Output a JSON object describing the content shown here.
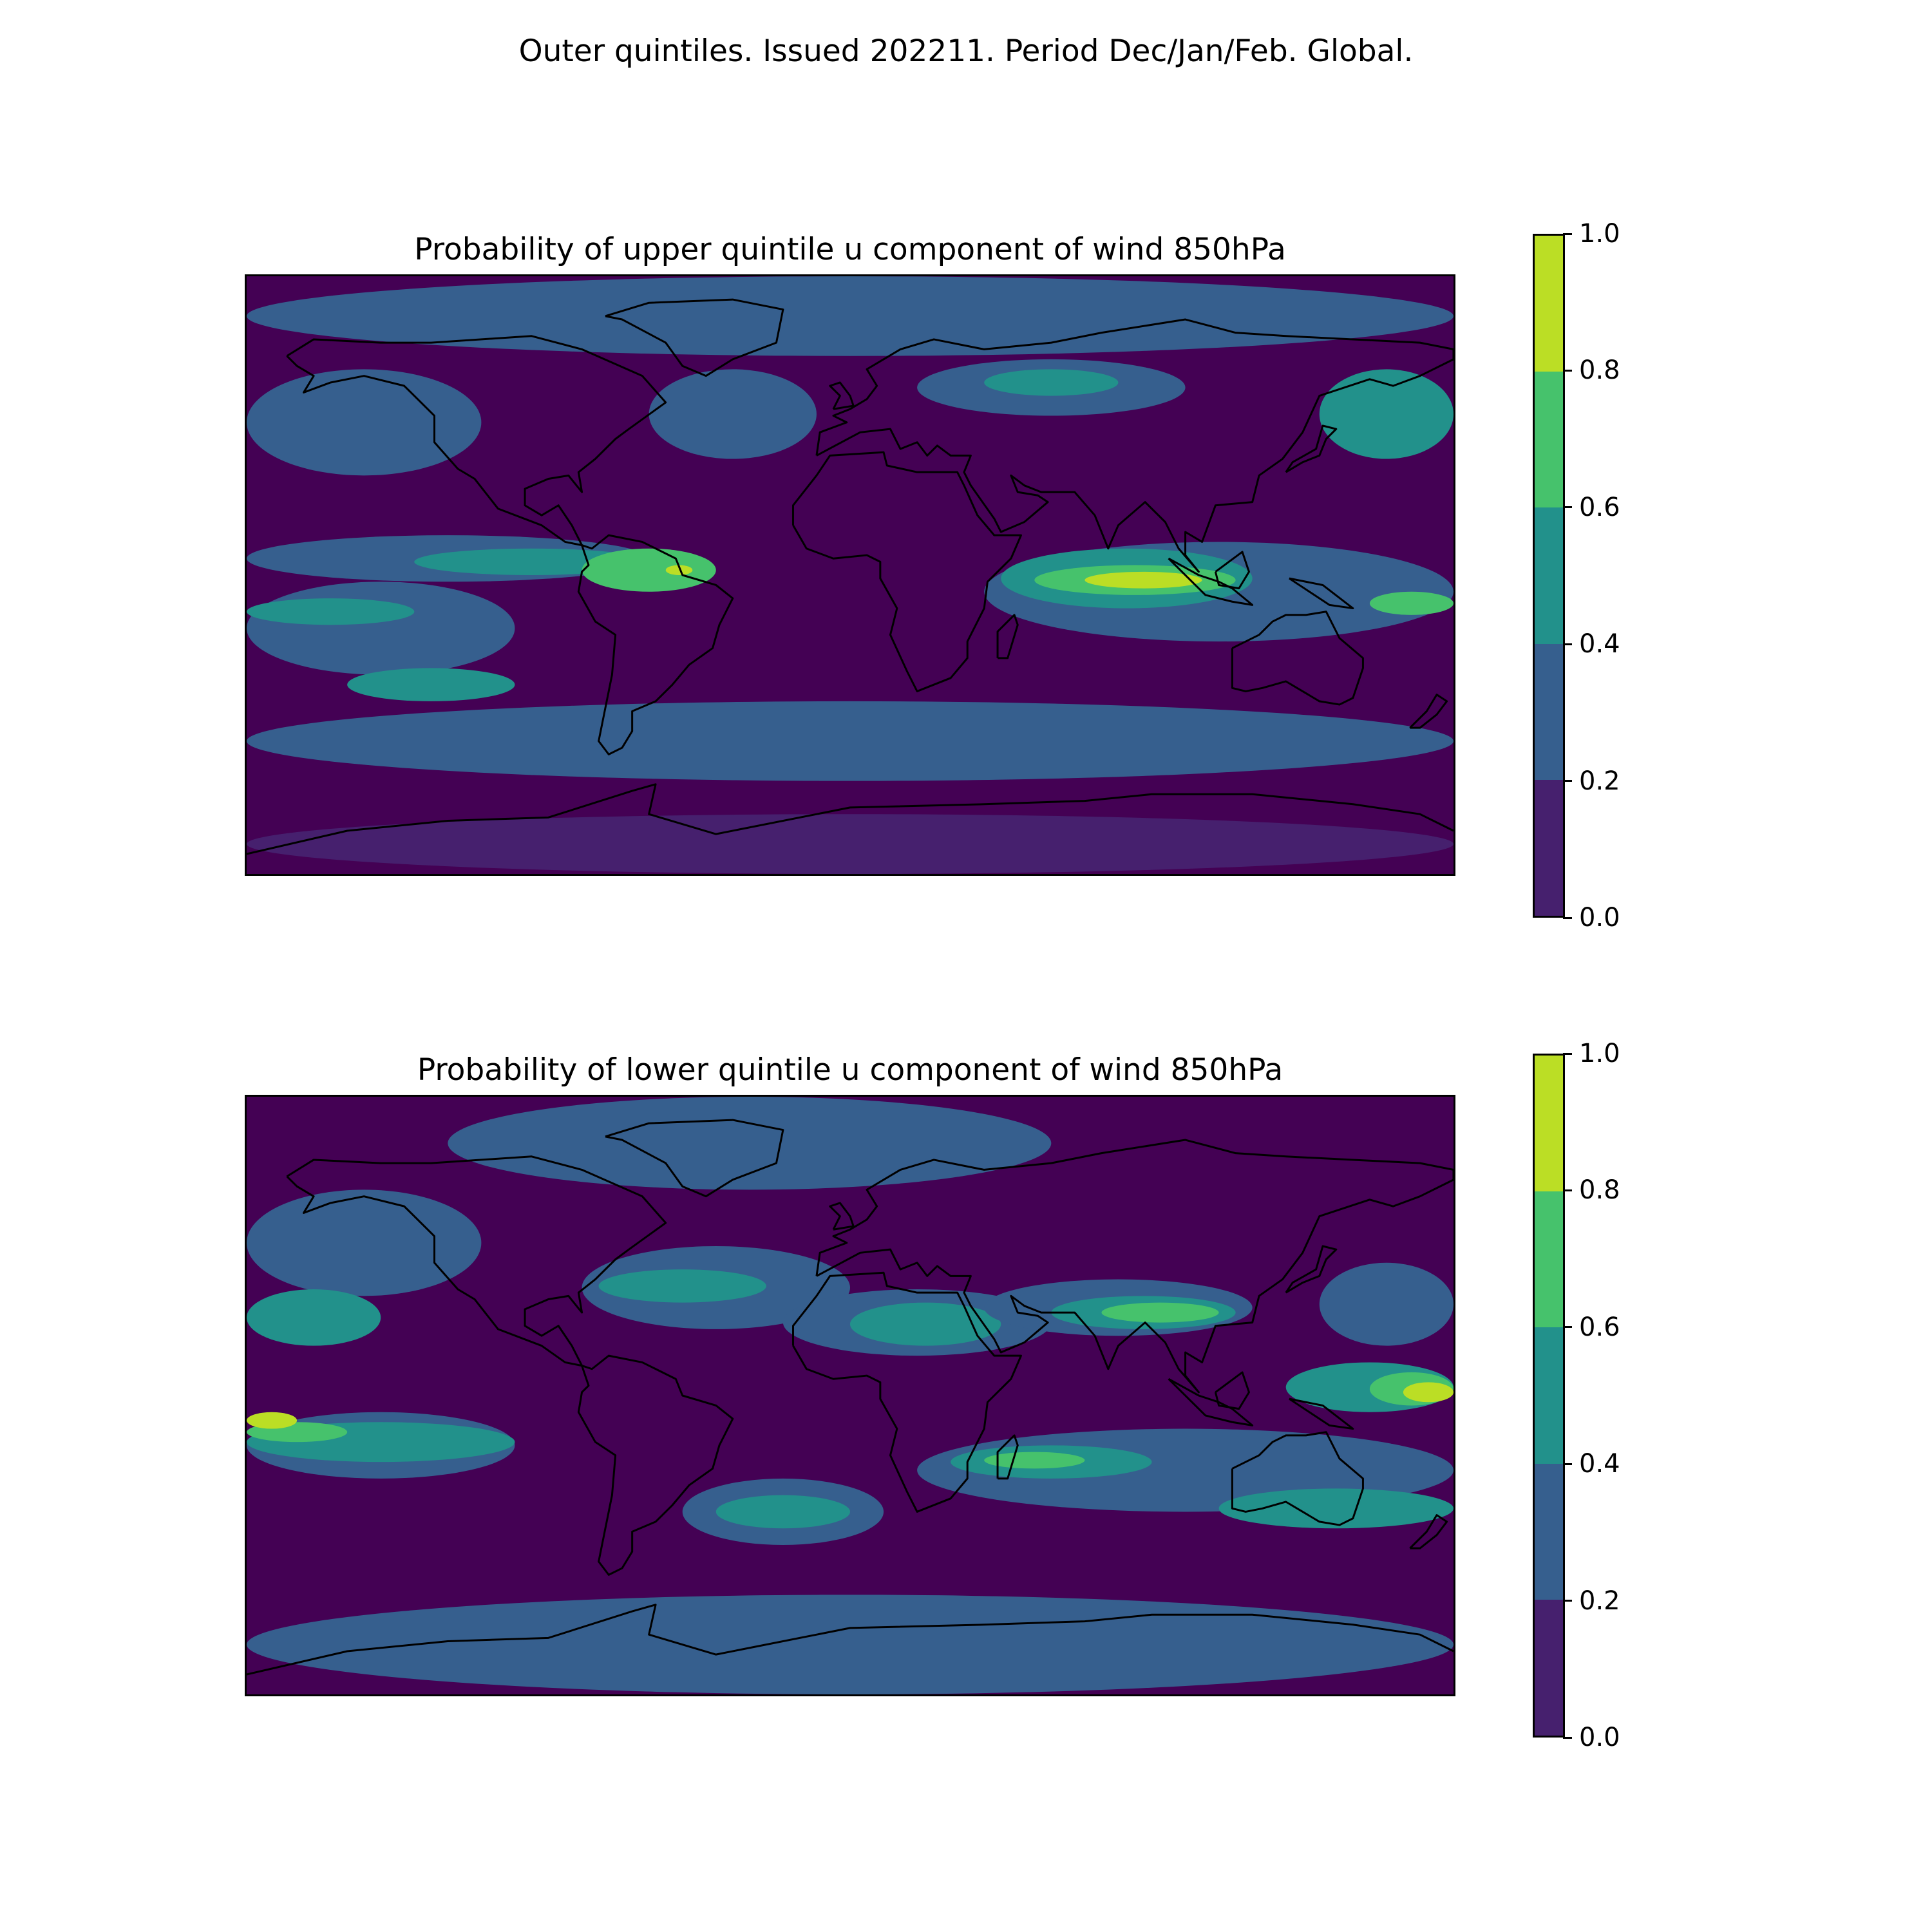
{
  "figure": {
    "suptitle": "Outer quintiles. Issued 202211. Period Dec/Jan/Feb. Global."
  },
  "colorbar": {
    "ticks": [
      "0.0",
      "0.2",
      "0.4",
      "0.6",
      "0.8",
      "1.0"
    ],
    "levels": [
      0.0,
      0.2,
      0.4,
      0.6,
      0.8,
      1.0
    ],
    "colors": [
      "#46206e",
      "#365f8e",
      "#22918b",
      "#46c26c",
      "#bbde25"
    ]
  },
  "chart_data": [
    {
      "type": "heatmap",
      "title": "Probability of upper quintile u component of wind 850hPa",
      "projection": "plate-carree",
      "extent": {
        "lon": [
          -180,
          180
        ],
        "lat": [
          -90,
          90
        ]
      },
      "levels": [
        0.0,
        0.2,
        0.4,
        0.6,
        0.8,
        1.0
      ],
      "regions": [
        {
          "name": "arctic belt",
          "lon": [
            -180,
            180
          ],
          "lat": [
            66,
            90
          ],
          "value": 0.3
        },
        {
          "name": "north pacific",
          "lon": [
            -180,
            -110
          ],
          "lat": [
            30,
            62
          ],
          "value": 0.3
        },
        {
          "name": "north atlantic",
          "lon": [
            -60,
            -10
          ],
          "lat": [
            35,
            62
          ],
          "value": 0.3
        },
        {
          "name": "europe-siberia",
          "lon": [
            20,
            100
          ],
          "lat": [
            48,
            65
          ],
          "value": 0.3
        },
        {
          "name": "siberia jet",
          "lon": [
            40,
            80
          ],
          "lat": [
            54,
            62
          ],
          "value": 0.5
        },
        {
          "name": "east asia-pacific",
          "lon": [
            140,
            180
          ],
          "lat": [
            35,
            62
          ],
          "value": 0.5
        },
        {
          "name": "tropical east pacific",
          "lon": [
            -180,
            -60
          ],
          "lat": [
            -2,
            12
          ],
          "value": 0.3
        },
        {
          "name": "tropical east pacific core",
          "lon": [
            -130,
            -60
          ],
          "lat": [
            0,
            8
          ],
          "value": 0.5
        },
        {
          "name": "south america north",
          "lon": [
            -80,
            -40
          ],
          "lat": [
            -5,
            8
          ],
          "value": 0.7
        },
        {
          "name": "amazon max",
          "lon": [
            -55,
            -47
          ],
          "lat": [
            0,
            3
          ],
          "value": 0.9
        },
        {
          "name": "indian ocean",
          "lon": [
            40,
            180
          ],
          "lat": [
            -20,
            10
          ],
          "value": 0.3
        },
        {
          "name": "indian ocean core",
          "lon": [
            45,
            120
          ],
          "lat": [
            -10,
            8
          ],
          "value": 0.5
        },
        {
          "name": "indian ocean strong",
          "lon": [
            55,
            115
          ],
          "lat": [
            -6,
            3
          ],
          "value": 0.7
        },
        {
          "name": "indian ocean max",
          "lon": [
            70,
            105
          ],
          "lat": [
            -4,
            1
          ],
          "value": 0.9
        },
        {
          "name": "coral sea",
          "lon": [
            155,
            180
          ],
          "lat": [
            -12,
            -5
          ],
          "value": 0.7
        },
        {
          "name": "south pacific belt",
          "lon": [
            -180,
            -100
          ],
          "lat": [
            -30,
            -2
          ],
          "value": 0.3
        },
        {
          "name": "south pacific core",
          "lon": [
            -180,
            -130
          ],
          "lat": [
            -15,
            -7
          ],
          "value": 0.5
        },
        {
          "name": "southern ocean belt",
          "lon": [
            -180,
            180
          ],
          "lat": [
            -62,
            -38
          ],
          "value": 0.3
        },
        {
          "name": "south atlantic band",
          "lon": [
            -150,
            -100
          ],
          "lat": [
            -38,
            -28
          ],
          "value": 0.5
        },
        {
          "name": "antarctic",
          "lon": [
            -180,
            180
          ],
          "lat": [
            -90,
            -72
          ],
          "value": 0.1
        }
      ]
    },
    {
      "type": "heatmap",
      "title": "Probability of lower quintile u component of wind 850hPa",
      "projection": "plate-carree",
      "extent": {
        "lon": [
          -180,
          180
        ],
        "lat": [
          -90,
          90
        ]
      },
      "levels": [
        0.0,
        0.2,
        0.4,
        0.6,
        0.8,
        1.0
      ],
      "regions": [
        {
          "name": "arctic belt",
          "lon": [
            -120,
            60
          ],
          "lat": [
            62,
            90
          ],
          "value": 0.3
        },
        {
          "name": "north pacific",
          "lon": [
            -180,
            -110
          ],
          "lat": [
            30,
            62
          ],
          "value": 0.3
        },
        {
          "name": "north atlantic",
          "lon": [
            -80,
            0
          ],
          "lat": [
            20,
            45
          ],
          "value": 0.3
        },
        {
          "name": "north atlantic core",
          "lon": [
            -75,
            -25
          ],
          "lat": [
            28,
            38
          ],
          "value": 0.5
        },
        {
          "name": "sahara-arabia",
          "lon": [
            -20,
            60
          ],
          "lat": [
            12,
            32
          ],
          "value": 0.3
        },
        {
          "name": "sahara core",
          "lon": [
            0,
            45
          ],
          "lat": [
            15,
            28
          ],
          "value": 0.5
        },
        {
          "name": "south asia jet",
          "lon": [
            40,
            120
          ],
          "lat": [
            18,
            35
          ],
          "value": 0.3
        },
        {
          "name": "india-china",
          "lon": [
            60,
            115
          ],
          "lat": [
            20,
            30
          ],
          "value": 0.5
        },
        {
          "name": "india-china core",
          "lon": [
            75,
            110
          ],
          "lat": [
            22,
            28
          ],
          "value": 0.7
        },
        {
          "name": "northeast pacific",
          "lon": [
            140,
            180
          ],
          "lat": [
            15,
            40
          ],
          "value": 0.3
        },
        {
          "name": "hawaii band",
          "lon": [
            -180,
            -140
          ],
          "lat": [
            15,
            32
          ],
          "value": 0.5
        },
        {
          "name": "west pacific warm pool",
          "lon": [
            130,
            180
          ],
          "lat": [
            -5,
            10
          ],
          "value": 0.5
        },
        {
          "name": "west pacific strong",
          "lon": [
            155,
            180
          ],
          "lat": [
            -3,
            7
          ],
          "value": 0.7
        },
        {
          "name": "west pacific max",
          "lon": [
            165,
            180
          ],
          "lat": [
            -2,
            4
          ],
          "value": 0.9
        },
        {
          "name": "central pacific band",
          "lon": [
            -180,
            -100
          ],
          "lat": [
            -25,
            -5
          ],
          "value": 0.3
        },
        {
          "name": "central pacific core",
          "lon": [
            -180,
            -100
          ],
          "lat": [
            -20,
            -8
          ],
          "value": 0.5
        },
        {
          "name": "central pacific strong",
          "lon": [
            -180,
            -150
          ],
          "lat": [
            -14,
            -8
          ],
          "value": 0.7
        },
        {
          "name": "dateline max",
          "lon": [
            -180,
            -165
          ],
          "lat": [
            -10,
            -5
          ],
          "value": 0.9
        },
        {
          "name": "south atlantic",
          "lon": [
            -50,
            10
          ],
          "lat": [
            -45,
            -25
          ],
          "value": 0.3
        },
        {
          "name": "south atlantic core",
          "lon": [
            -40,
            0
          ],
          "lat": [
            -40,
            -30
          ],
          "value": 0.5
        },
        {
          "name": "south indian ocean",
          "lon": [
            20,
            180
          ],
          "lat": [
            -35,
            -10
          ],
          "value": 0.3
        },
        {
          "name": "south indian core",
          "lon": [
            30,
            90
          ],
          "lat": [
            -25,
            -15
          ],
          "value": 0.5
        },
        {
          "name": "madagascar strong",
          "lon": [
            40,
            70
          ],
          "lat": [
            -22,
            -17
          ],
          "value": 0.7
        },
        {
          "name": "tasman",
          "lon": [
            110,
            180
          ],
          "lat": [
            -40,
            -28
          ],
          "value": 0.5
        },
        {
          "name": "southern ocean",
          "lon": [
            -180,
            180
          ],
          "lat": [
            -90,
            -60
          ],
          "value": 0.3
        }
      ]
    }
  ]
}
